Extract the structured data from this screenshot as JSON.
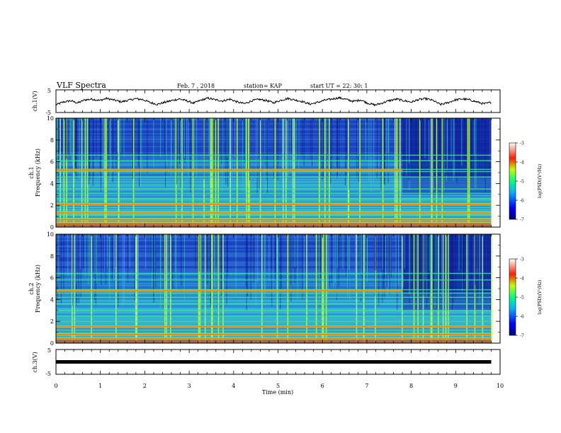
{
  "header": {
    "title": "VLF Spectra",
    "date": "Feb. 7 , 2018",
    "station": "station= KAP",
    "start": "start  UT =   22: 30: 1"
  },
  "chart_data": [
    {
      "type": "line",
      "name": "ch1-waveform",
      "ylabel": "ch.1(V)",
      "ylim": [
        -5,
        5
      ],
      "yticks": [
        "5",
        "-5"
      ],
      "xlim": [
        0,
        10
      ],
      "trend": [
        -1.6,
        -0.4,
        0.2,
        -0.8,
        0.6,
        0.9,
        0.3,
        1.2,
        0.5,
        -0.3,
        0.4,
        1.1,
        0.7,
        -0.6,
        -1.4,
        -0.5,
        0.3,
        1.0,
        0.2,
        -0.9,
        0.5,
        1.3,
        0.6,
        0.1,
        0.9,
        -0.4,
        -1.1,
        0.2,
        0.8,
        0.3,
        -0.7,
        0.4,
        1.2,
        0.5,
        -0.2,
        -1.3,
        -0.6,
        0.4,
        0.9,
        1.5,
        0.8,
        -0.1,
        0.6,
        -0.9,
        -1.7,
        -0.8,
        0.3,
        0.9,
        0.2,
        -0.4,
        0.7,
        1.1,
        0.3,
        -1.5,
        -0.7,
        0.5,
        1.0,
        0.6,
        -0.3,
        -1.2,
        -0.5
      ]
    },
    {
      "type": "heatmap",
      "name": "ch1-spectrogram",
      "ylabel_top": "ch.1",
      "ylabel": "Frequency (kHz)",
      "ylim": [
        0,
        10
      ],
      "xlim": [
        0,
        10
      ],
      "yticks": [
        "0",
        "2",
        "4",
        "6",
        "8",
        "10"
      ],
      "colorbar": {
        "min": -7,
        "max": -3,
        "ticks": [
          "-3",
          "-4",
          "-5",
          "-6",
          "-7"
        ],
        "label": "log(PSD)(V²/Hz)"
      },
      "lines_khz": [
        0.2,
        0.5,
        0.8,
        1.1,
        1.4,
        1.8,
        2.2,
        2.6,
        3.1,
        3.5,
        4.6,
        5.1,
        5.3,
        6.1,
        6.6
      ],
      "hot_lines_khz": [
        0.35,
        0.7,
        1.3,
        2.1,
        5.25
      ],
      "band_change_min": 7.8
    },
    {
      "type": "heatmap",
      "name": "ch2-spectrogram",
      "ylabel_top": "ch.2",
      "ylabel": "Frequency (kHz)",
      "ylim": [
        0,
        10
      ],
      "xlim": [
        0,
        10
      ],
      "yticks": [
        "0",
        "2",
        "4",
        "6",
        "8",
        "10"
      ],
      "colorbar": {
        "min": -7,
        "max": -3,
        "ticks": [
          "-3",
          "-4",
          "-5",
          "-6",
          "-7"
        ],
        "label": "log(PSD)(V²/Hz)"
      },
      "lines_khz": [
        0.2,
        0.5,
        0.9,
        1.2,
        1.6,
        2.0,
        2.5,
        3.0,
        3.6,
        4.2,
        4.6,
        4.9,
        5.8,
        6.4
      ],
      "hot_lines_khz": [
        0.4,
        0.8,
        1.5,
        4.8
      ],
      "band_change_min": 7.8
    },
    {
      "type": "line",
      "name": "ch3-waveform",
      "ylabel": "ch.3(V)",
      "ylim": [
        -5,
        5
      ],
      "yticks": [
        "5",
        "-5"
      ],
      "xlim": [
        0,
        9.8
      ],
      "constant_value": 0
    }
  ],
  "xaxis": {
    "label": "Time (min)",
    "ticks": [
      "0",
      "1",
      "2",
      "3",
      "4",
      "5",
      "6",
      "7",
      "8",
      "9",
      "10"
    ]
  },
  "colors": {
    "line": "#000000",
    "spectrum_low": "#0a1aa0",
    "spectrum_mid": "#2fc8c8",
    "spectrum_high": "#e03010"
  }
}
